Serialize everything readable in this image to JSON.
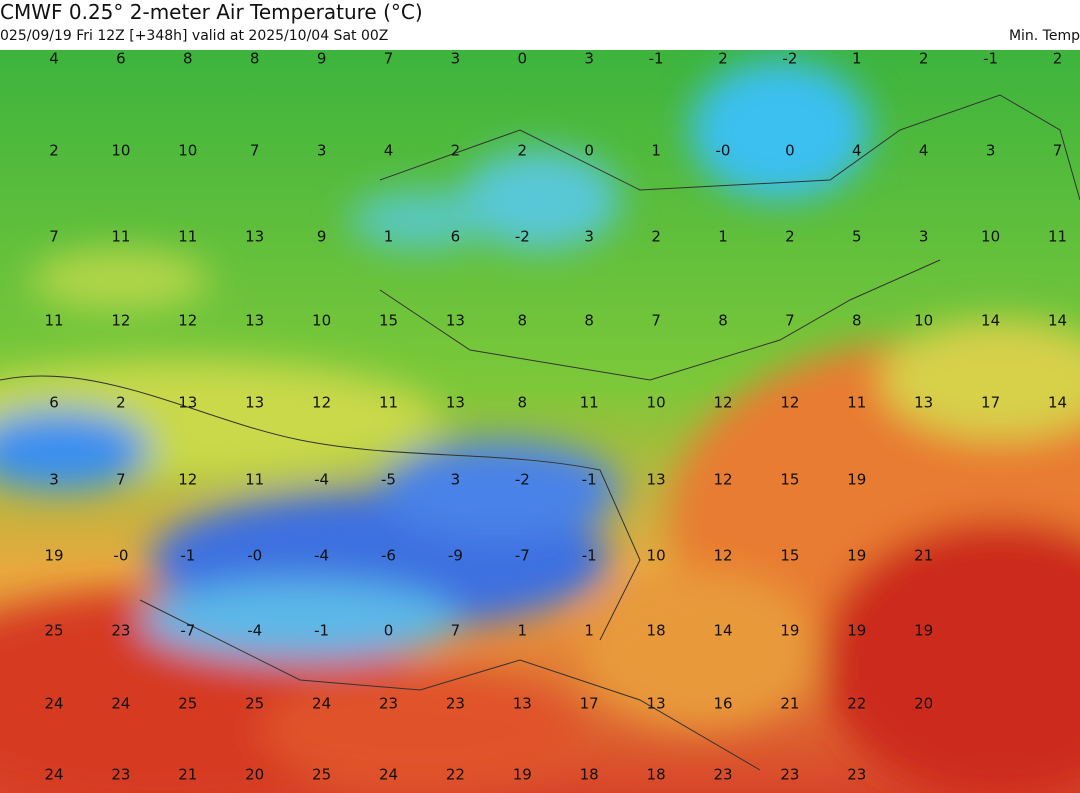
{
  "header": {
    "title": "CMWF 0.25° 2-meter Air Temperature (°C)",
    "subtitle": "025/09/19 Fri 12Z [+348h] valid at 2025/10/04 Sat 00Z",
    "right_label": "Min. Temp"
  },
  "map": {
    "labels": [
      [
        "4",
        "6",
        "8",
        "8",
        "9",
        "7",
        "3",
        "0",
        "3",
        "-1",
        "2",
        "-2",
        "1",
        "2",
        "-1",
        "2"
      ],
      [
        "2",
        "10",
        "10",
        "7",
        "3",
        "4",
        "2",
        "2",
        "0",
        "1",
        "-0",
        "0",
        "4",
        "4",
        "3",
        "7"
      ],
      [
        "7",
        "11",
        "11",
        "13",
        "9",
        "1",
        "6",
        "-2",
        "3",
        "2",
        "1",
        "2",
        "5",
        "3",
        "10",
        "11"
      ],
      [
        "11",
        "12",
        "12",
        "13",
        "10",
        "15",
        "13",
        "8",
        "8",
        "7",
        "8",
        "7",
        "8",
        "10",
        "14",
        "14"
      ],
      [
        "6",
        "2",
        "13",
        "13",
        "12",
        "11",
        "13",
        "8",
        "11",
        "10",
        "12",
        "12",
        "11",
        "13",
        "17",
        "14"
      ],
      [
        "3",
        "7",
        "12",
        "11",
        "-4",
        "-5",
        "3",
        "-2",
        "-1",
        "13",
        "12",
        "15",
        "19"
      ],
      [
        "19",
        "-0",
        "-1",
        "-0",
        "-4",
        "-6",
        "-9",
        "-7",
        "-1",
        "10",
        "12",
        "15",
        "19",
        "21"
      ],
      [
        "25",
        "23",
        "-7",
        "-4",
        "-1",
        "0",
        "7",
        "1",
        "1",
        "18",
        "14",
        "19",
        "19",
        "19"
      ],
      [
        "24",
        "24",
        "25",
        "25",
        "24",
        "23",
        "23",
        "13",
        "17",
        "13",
        "16",
        "21",
        "22",
        "20"
      ],
      [
        "24",
        "23",
        "21",
        "20",
        "25",
        "24",
        "22",
        "19",
        "18",
        "18",
        "23",
        "23",
        "23"
      ]
    ]
  }
}
